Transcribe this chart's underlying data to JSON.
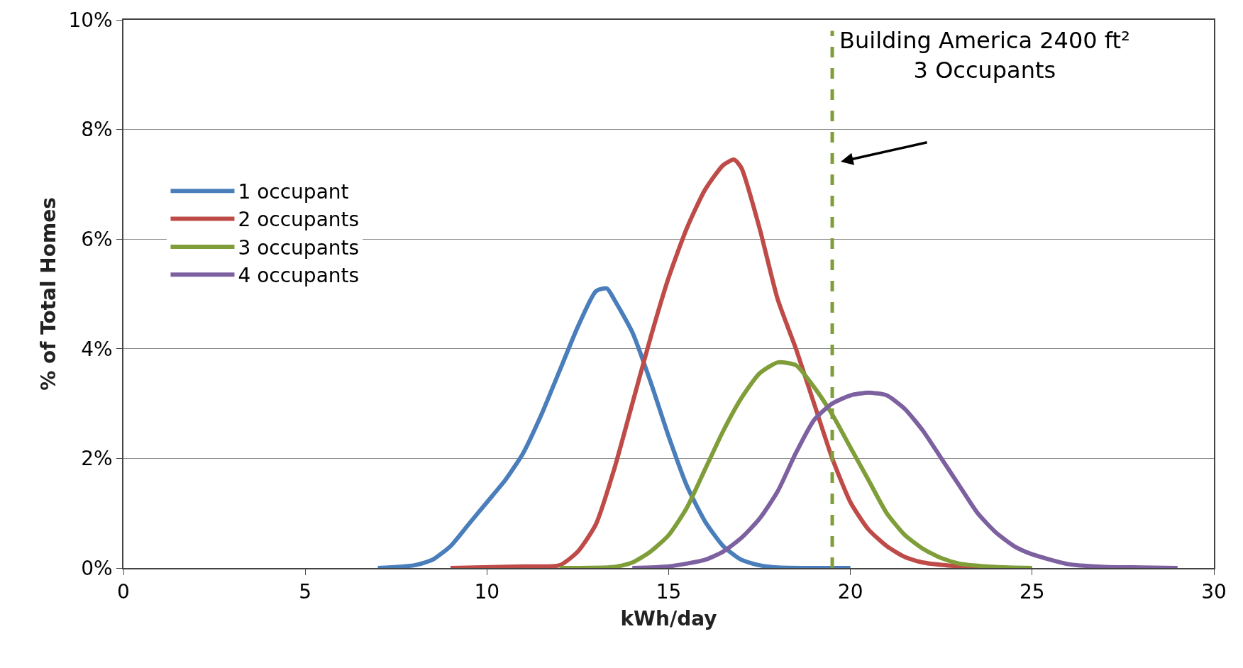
{
  "chart_data": {
    "type": "line",
    "xlabel": "kWh/day",
    "ylabel": "% of Total Homes",
    "xlim": [
      0,
      30
    ],
    "xticks": [
      0,
      5,
      10,
      15,
      20,
      25,
      30
    ],
    "ylim": [
      0,
      10
    ],
    "yticks": [
      {
        "value": 0,
        "label": "0%"
      },
      {
        "value": 2,
        "label": "2%"
      },
      {
        "value": 4,
        "label": "4%"
      },
      {
        "value": 6,
        "label": "6%"
      },
      {
        "value": 8,
        "label": "8%"
      },
      {
        "value": 10,
        "label": "10%"
      }
    ],
    "grid": "y",
    "legend": "left",
    "marker": "none",
    "line_style": "solid",
    "series": [
      {
        "name": "1 occupant",
        "color": "#4a7ebb",
        "x": [
          7,
          8,
          8.5,
          9,
          9.5,
          10,
          10.5,
          11,
          11.5,
          12,
          12.5,
          13,
          13.3,
          13.5,
          14,
          14.5,
          15,
          15.5,
          16,
          16.5,
          17,
          17.5,
          18,
          19,
          20
        ],
        "values": [
          0,
          0.05,
          0.15,
          0.4,
          0.8,
          1.2,
          1.6,
          2.1,
          2.8,
          3.6,
          4.4,
          5.05,
          5.1,
          4.9,
          4.3,
          3.4,
          2.4,
          1.5,
          0.85,
          0.4,
          0.15,
          0.05,
          0.01,
          0,
          0
        ]
      },
      {
        "name": "2 occupants",
        "color": "#be4b48",
        "x": [
          9,
          11,
          12,
          12.5,
          13,
          13.5,
          14,
          14.5,
          15,
          15.5,
          16,
          16.5,
          16.8,
          17,
          17.5,
          18,
          18.5,
          19,
          19.5,
          20,
          20.5,
          21,
          21.5,
          22,
          23,
          24
        ],
        "values": [
          0,
          0.03,
          0.05,
          0.3,
          0.8,
          1.8,
          3.0,
          4.2,
          5.3,
          6.2,
          6.9,
          7.35,
          7.45,
          7.3,
          6.2,
          4.9,
          4.0,
          3.0,
          2.0,
          1.2,
          0.7,
          0.4,
          0.2,
          0.1,
          0.03,
          0
        ]
      },
      {
        "name": "3 occupants",
        "color": "#7f9e3a",
        "x": [
          12,
          13.5,
          14,
          14.5,
          15,
          15.5,
          16,
          16.5,
          17,
          17.5,
          18,
          18.5,
          19,
          19.5,
          20,
          20.5,
          21,
          21.5,
          22,
          22.5,
          23,
          24,
          25
        ],
        "values": [
          0,
          0.02,
          0.1,
          0.3,
          0.6,
          1.1,
          1.8,
          2.5,
          3.1,
          3.55,
          3.75,
          3.7,
          3.3,
          2.8,
          2.2,
          1.6,
          1.0,
          0.6,
          0.35,
          0.18,
          0.08,
          0.02,
          0
        ]
      },
      {
        "name": "4 occupants",
        "color": "#7d60a0",
        "x": [
          14,
          15,
          16,
          16.5,
          17,
          17.5,
          18,
          18.5,
          19,
          19.5,
          20,
          20.5,
          21,
          21.5,
          22,
          22.5,
          23,
          23.5,
          24,
          24.5,
          25,
          26,
          27,
          28,
          29
        ],
        "values": [
          0,
          0.03,
          0.15,
          0.3,
          0.55,
          0.9,
          1.4,
          2.1,
          2.7,
          3.0,
          3.15,
          3.2,
          3.15,
          2.9,
          2.5,
          2.0,
          1.5,
          1.0,
          0.65,
          0.4,
          0.25,
          0.07,
          0.02,
          0.01,
          0
        ]
      }
    ],
    "ref_lines": [
      {
        "axis": "x",
        "value": 19.5,
        "label": "Building America 2400 ft²\n3 Occupants",
        "color": "#7f9e3a",
        "line_style": "dashed"
      }
    ]
  }
}
